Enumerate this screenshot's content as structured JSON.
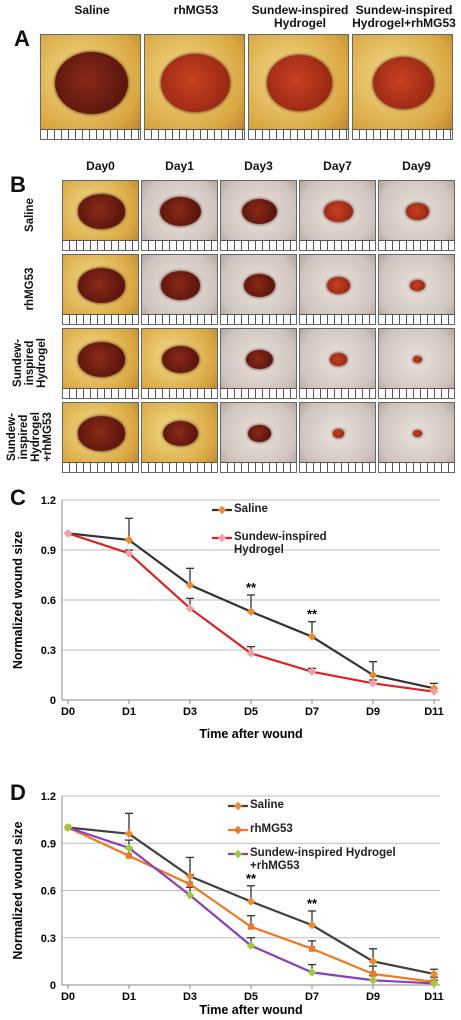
{
  "panel_a": {
    "label": "A",
    "groups": [
      "Saline",
      "rhMG53",
      "Sundew-inspired Hydrogel",
      "Sundew-inspired Hydrogel+rhMG53"
    ]
  },
  "panel_b": {
    "label": "B",
    "days": [
      "Day0",
      "Day1",
      "Day3",
      "Day7",
      "Day9"
    ],
    "groups": [
      "Saline",
      "rhMG53",
      "Sundew-inspired Hydrogel",
      "Sundew-inspired Hydrogel +rhMG53"
    ]
  },
  "chart_data": [
    {
      "type": "line",
      "label": "C",
      "x_label": "Time after wound",
      "y_label": "Normalized wound size",
      "categories": [
        "D0",
        "D1",
        "D3",
        "D5",
        "D7",
        "D9",
        "D11"
      ],
      "ylim": [
        0,
        1.2
      ],
      "yticks": [
        0,
        0.3,
        0.6,
        0.9,
        1.2
      ],
      "grid": true,
      "series": [
        {
          "name": "Saline",
          "color": "#333333",
          "marker_color": "#f08a2a",
          "values": [
            1.0,
            0.96,
            0.69,
            0.53,
            0.38,
            0.15,
            0.07
          ],
          "errors": [
            0,
            0.13,
            0.1,
            0.1,
            0.09,
            0.08,
            0.03
          ]
        },
        {
          "name": "Sundew-inspired Hydrogel",
          "color": "#e02020",
          "marker_color": "#f0a0a8",
          "values": [
            1.0,
            0.88,
            0.55,
            0.28,
            0.17,
            0.1,
            0.05
          ],
          "errors": [
            0,
            0.02,
            0.06,
            0.04,
            0.02,
            0.02,
            0.02
          ]
        }
      ],
      "annotations": [
        {
          "text": "**",
          "x": "D5"
        },
        {
          "text": "**",
          "x": "D7"
        }
      ]
    },
    {
      "type": "line",
      "label": "D",
      "x_label": "Time after wound",
      "y_label": "Normalized wound size",
      "categories": [
        "D0",
        "D1",
        "D3",
        "D5",
        "D7",
        "D9",
        "D11"
      ],
      "ylim": [
        0,
        1.2
      ],
      "yticks": [
        0,
        0.3,
        0.6,
        0.9,
        1.2
      ],
      "grid": true,
      "series": [
        {
          "name": "Saline",
          "color": "#404040",
          "marker_color": "#f08a2a",
          "values": [
            1.0,
            0.96,
            0.69,
            0.53,
            0.38,
            0.15,
            0.07
          ],
          "errors": [
            0,
            0.13,
            0.12,
            0.1,
            0.09,
            0.08,
            0.03
          ]
        },
        {
          "name": "rhMG53",
          "color": "#f07820",
          "marker_color": "#f07820",
          "values": [
            1.0,
            0.82,
            0.64,
            0.37,
            0.23,
            0.07,
            0.02
          ],
          "errors": [
            0,
            0.05,
            0.06,
            0.07,
            0.05,
            0.05,
            0.03
          ]
        },
        {
          "name": "Sundew-inspired Hydrogel +rhMG53",
          "color": "#8a3fbf",
          "marker_color": "#9acd32",
          "values": [
            1.0,
            0.87,
            0.57,
            0.25,
            0.08,
            0.03,
            0.01
          ],
          "errors": [
            0,
            0.05,
            0.05,
            0.05,
            0.05,
            0.03,
            0.02
          ]
        }
      ],
      "annotations": [
        {
          "text": "**",
          "x": "D5"
        },
        {
          "text": "**",
          "x": "D7"
        }
      ]
    }
  ]
}
